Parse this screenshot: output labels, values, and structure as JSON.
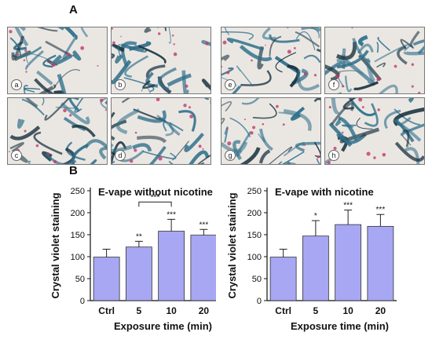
{
  "panel_labels": {
    "a": "A",
    "b": "B"
  },
  "micrographs": {
    "left": [
      "a",
      "b",
      "c",
      "d"
    ],
    "right": [
      "e",
      "f",
      "g",
      "h"
    ],
    "colors": {
      "fiber": "#2f6f8a",
      "fiber_dark": "#1b3340",
      "stain": "#c23a6a",
      "background": "#eae7e3"
    }
  },
  "chart_data": [
    {
      "type": "bar",
      "title": "E-vape without  nicotine",
      "xlabel": "Exposure time (min)",
      "ylabel": "Crystal violet staining",
      "categories": [
        "Ctrl",
        "5",
        "10",
        "20"
      ],
      "values": [
        99,
        122,
        158,
        149
      ],
      "errors": [
        18,
        13,
        27,
        13
      ],
      "significance": [
        "",
        "**",
        "***",
        "***"
      ],
      "brackets": [
        {
          "from": "5",
          "to": "10",
          "label": "***"
        }
      ],
      "ylim": [
        0,
        250
      ],
      "yticks": [
        0,
        50,
        100,
        150,
        200,
        250
      ],
      "bar_color": "#a7a7f3"
    },
    {
      "type": "bar",
      "title": "E-vape with  nicotine",
      "xlabel": "Exposure time (min)",
      "ylabel": "Crystal violet staining",
      "categories": [
        "Ctrl",
        "5",
        "10",
        "20"
      ],
      "values": [
        99,
        147,
        173,
        169
      ],
      "errors": [
        18,
        35,
        33,
        27
      ],
      "significance": [
        "",
        "*",
        "***",
        "***"
      ],
      "brackets": [],
      "ylim": [
        0,
        250
      ],
      "yticks": [
        0,
        50,
        100,
        150,
        200,
        250
      ],
      "bar_color": "#a7a7f3"
    }
  ]
}
